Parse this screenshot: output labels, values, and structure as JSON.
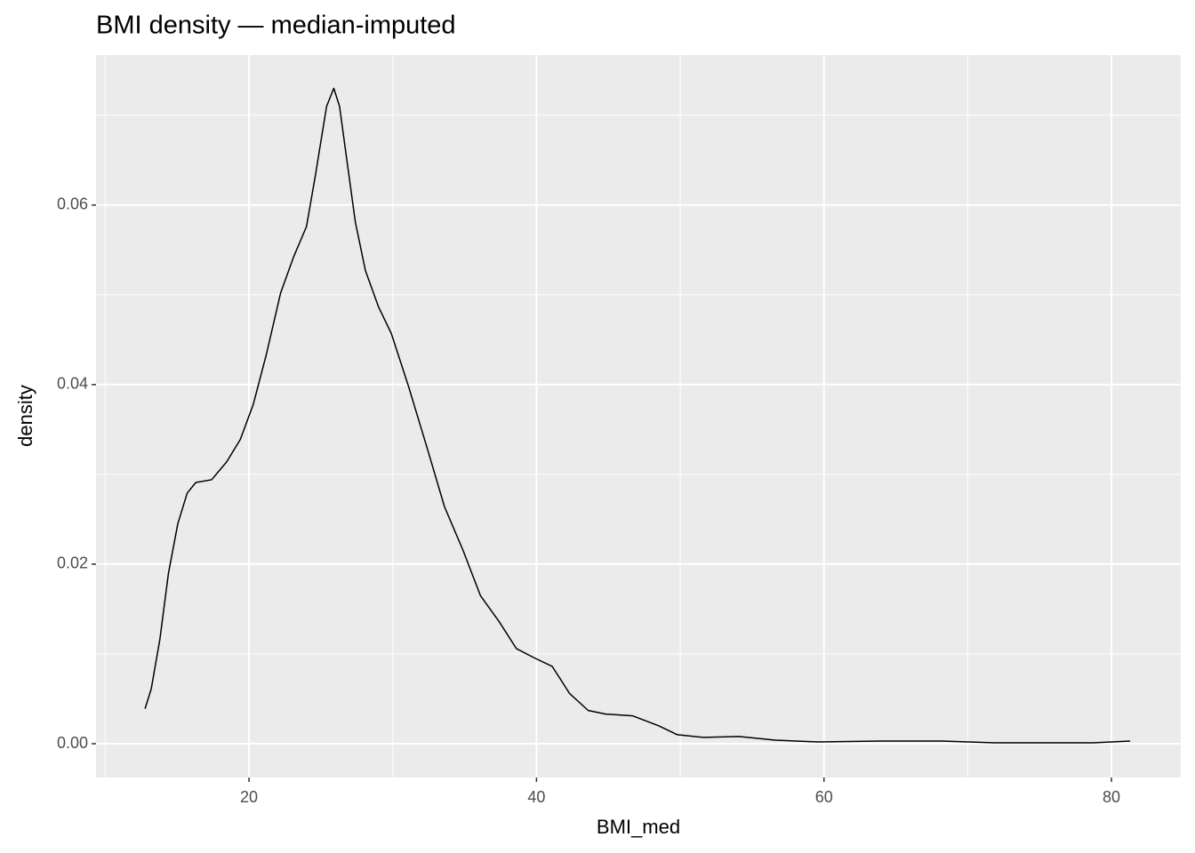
{
  "chart_data": {
    "type": "line",
    "title": "BMI density — median-imputed",
    "x_label": "BMI_med",
    "y_label": "density",
    "xlim": [
      9.36,
      84.82
    ],
    "ylim": [
      -0.00376,
      0.0767
    ],
    "xticks": [
      20,
      40,
      60,
      80
    ],
    "yticks": [
      {
        "value": 0,
        "label": "0.00"
      },
      {
        "value": 0.02,
        "label": "0.02"
      },
      {
        "value": 0.04,
        "label": "0.04"
      },
      {
        "value": 0.06,
        "label": "0.06"
      }
    ],
    "xminor": [
      10,
      30,
      50,
      70
    ],
    "yminor": [
      0.01,
      0.03,
      0.05,
      0.07
    ],
    "grid": true,
    "panel_color": "#ebebeb",
    "series": [
      {
        "color": "#000000",
        "x": [
          12.77,
          13.2,
          13.8,
          14.4,
          15.05,
          15.7,
          16.3,
          17.4,
          18.45,
          19.4,
          20.3,
          21.2,
          22.2,
          23.1,
          24.0,
          24.6,
          25.4,
          25.9,
          26.3,
          26.8,
          27.4,
          28.1,
          29.0,
          29.9,
          31.1,
          32.4,
          33.6,
          34.9,
          36.1,
          37.4,
          38.6,
          39.8,
          41.1,
          42.3,
          43.6,
          44.8,
          46.7,
          48.5,
          49.8,
          51.6,
          54.1,
          56.6,
          59.6,
          63.9,
          68.2,
          71.9,
          78.7,
          81.3
        ],
        "values": [
          0.0039,
          0.0061,
          0.0116,
          0.019,
          0.0245,
          0.0279,
          0.0291,
          0.0294,
          0.0314,
          0.0339,
          0.0378,
          0.0433,
          0.0502,
          0.0542,
          0.0576,
          0.0631,
          0.071,
          0.073,
          0.071,
          0.0651,
          0.0581,
          0.0527,
          0.0487,
          0.0457,
          0.0398,
          0.0329,
          0.0264,
          0.0215,
          0.0165,
          0.0136,
          0.0106,
          0.0096,
          0.0086,
          0.0056,
          0.0037,
          0.0033,
          0.0031,
          0.002,
          0.001,
          0.0007,
          0.0008,
          0.0004,
          0.0002,
          0.0003,
          0.0003,
          0.0001,
          0.0001,
          0.0003
        ]
      }
    ]
  }
}
